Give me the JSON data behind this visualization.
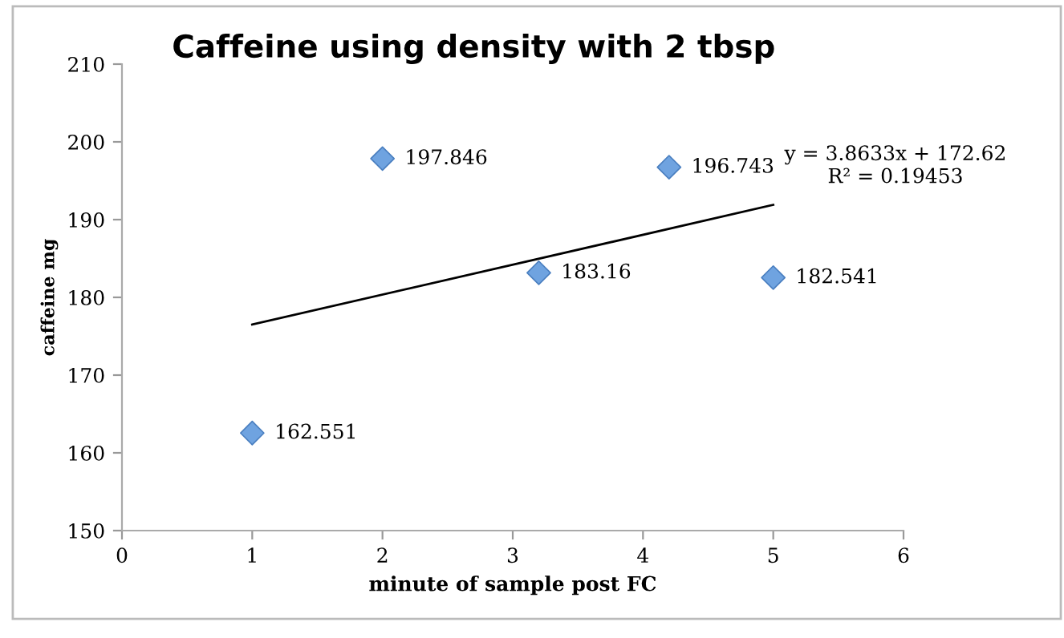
{
  "chart_data": {
    "type": "scatter",
    "title": "Caffeine using density with 2 tbsp",
    "xlabel": "minute of sample post FC",
    "ylabel": "caffeine mg",
    "xlim": [
      0,
      6
    ],
    "xticks": [
      0,
      1,
      2,
      3,
      4,
      5,
      6
    ],
    "ylim": [
      150,
      210
    ],
    "yticks": [
      150,
      160,
      170,
      180,
      190,
      200,
      210
    ],
    "grid": false,
    "legend": false,
    "series": [
      {
        "marker": "diamond",
        "color": "#6fa3e0",
        "x": [
          1,
          2,
          3.2,
          4.2,
          5
        ],
        "values": [
          162.551,
          197.846,
          183.16,
          196.743,
          182.541
        ],
        "value_labels": [
          "162.551",
          "197.846",
          "183.16",
          "196.743",
          "182.541"
        ]
      },
      {
        "type": "line",
        "marker": "none",
        "color": "#000000",
        "x": [
          1,
          5
        ],
        "values": [
          176.5,
          191.9
        ]
      }
    ],
    "annotations": [
      {
        "text": "y = 3.8633x + 172.62\nR² = 0.19453",
        "x": 5,
        "y": 191.9
      }
    ]
  }
}
